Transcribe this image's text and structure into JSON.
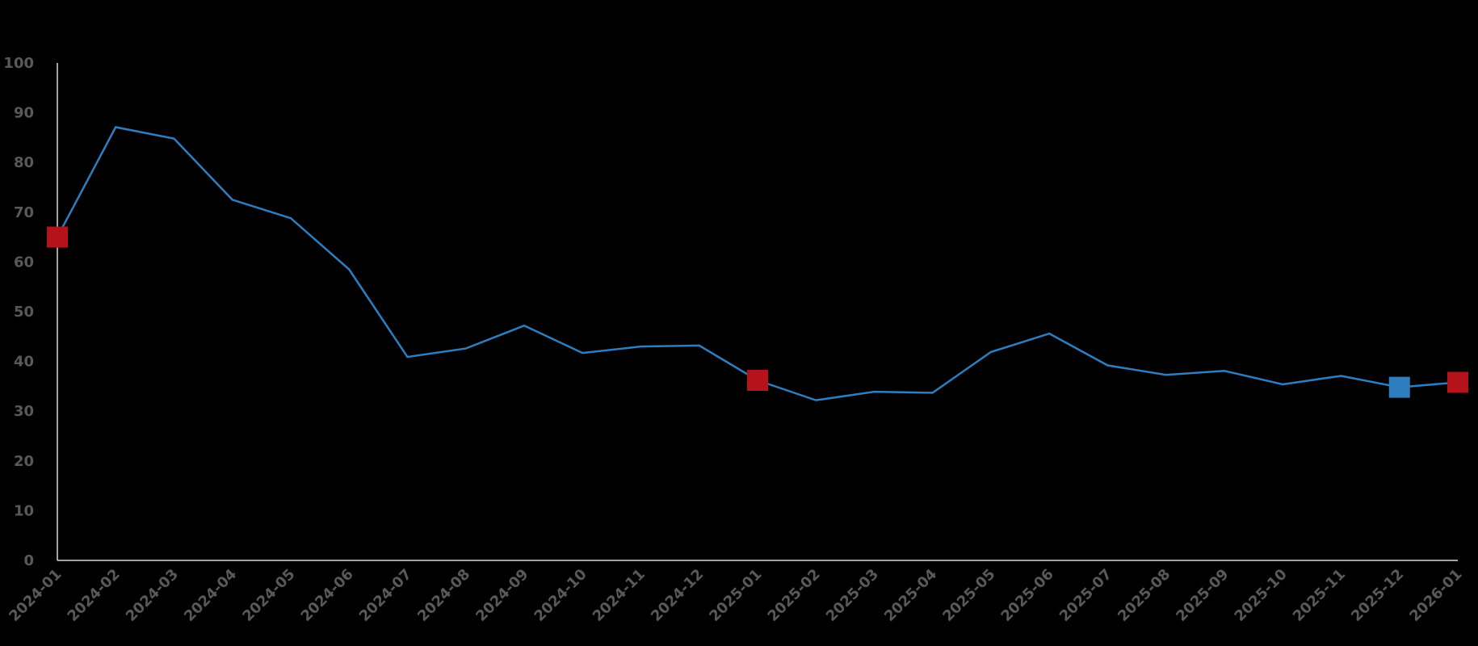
{
  "chart_data": {
    "type": "line",
    "title": "",
    "xlabel": "",
    "ylabel": "",
    "ylim": [
      0,
      100
    ],
    "yticks": [
      0,
      10,
      20,
      30,
      40,
      50,
      60,
      70,
      80,
      90,
      100
    ],
    "grid": false,
    "categories": [
      "2024-01",
      "2024-02",
      "2024-03",
      "2024-04",
      "2024-05",
      "2024-06",
      "2024-07",
      "2024-08",
      "2024-09",
      "2024-10",
      "2024-11",
      "2024-12",
      "2025-01",
      "2025-02",
      "2025-03",
      "2025-04",
      "2025-05",
      "2025-06",
      "2025-07",
      "2025-08",
      "2025-09",
      "2025-10",
      "2025-11",
      "2025-12",
      "2026-01"
    ],
    "series": [
      {
        "values": [
          65.0,
          87.1,
          84.8,
          72.5,
          68.8,
          58.5,
          40.9,
          42.6,
          47.2,
          41.7,
          43.0,
          43.2,
          36.2,
          32.2,
          33.9,
          33.7,
          41.9,
          45.6,
          39.2,
          37.3,
          38.1,
          35.4,
          37.1,
          34.8,
          35.8
        ],
        "color": "#2e7ebf"
      }
    ],
    "markers": [
      {
        "category": "2024-01",
        "value": 65.0,
        "color": "#b5121b"
      },
      {
        "category": "2025-01",
        "value": 36.2,
        "color": "#b5121b"
      },
      {
        "category": "2025-12",
        "value": 34.8,
        "color": "#2e7ebf"
      },
      {
        "category": "2026-01",
        "value": 35.8,
        "color": "#b5121b"
      }
    ],
    "axis_color": "#d9d9d9",
    "tick_color": "#595959"
  }
}
